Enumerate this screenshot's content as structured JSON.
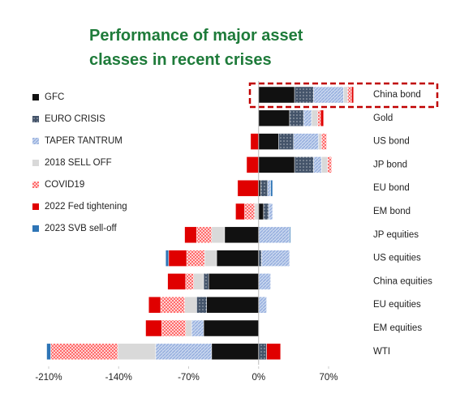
{
  "chart_data": {
    "type": "bar",
    "orientation": "horizontal",
    "stacked": true,
    "title_lines": [
      "Performance of major asset",
      "classes in recent crises"
    ],
    "categories": [
      "China bond",
      "Gold",
      "US bond",
      "JP bond",
      "EU bond",
      "EM bond",
      "JP equities",
      "US equities",
      "China equities",
      "EU equities",
      "EM equities",
      "WTI"
    ],
    "series": [
      {
        "name": "GFC",
        "color": "#111111",
        "values": [
          36,
          31,
          20,
          36,
          2,
          5,
          -34,
          -42,
          -50,
          -52,
          -55,
          -47
        ]
      },
      {
        "name": "EURO CRISIS",
        "color": "#44546a",
        "values": [
          19,
          14,
          15,
          19,
          7,
          5,
          null,
          3,
          -5,
          -10,
          null,
          8
        ]
      },
      {
        "name": "TAPER TANTRUM",
        "color": "#8faadc",
        "values": [
          30,
          8,
          25,
          8,
          3,
          4,
          31,
          28,
          12,
          8,
          -12,
          -56
        ]
      },
      {
        "name": "2018 SELL OFF",
        "color": "#d9d9d9",
        "values": [
          4,
          6,
          3,
          6,
          null,
          -4,
          -13,
          -12,
          -10,
          -12,
          -6,
          -38
        ]
      },
      {
        "name": "COVID19",
        "color": "#ff6b6b",
        "values": [
          4,
          3,
          5,
          4,
          null,
          -10,
          -15,
          -18,
          -8,
          -24,
          -24,
          -67
        ]
      },
      {
        "name": "2022 Fed tightening",
        "color": "#e00000",
        "values": [
          2,
          3,
          -8,
          -12,
          -21,
          -9,
          -12,
          -18,
          -18,
          -12,
          -16,
          14
        ]
      },
      {
        "name": "2023 SVB sell-off",
        "color": "#2e75b6",
        "values": [
          null,
          null,
          null,
          null,
          2,
          null,
          1,
          -3,
          null,
          null,
          null,
          -4
        ]
      }
    ],
    "xlim": [
      -225,
      85
    ],
    "xticks": [
      {
        "value": -210,
        "label": "-210%"
      },
      {
        "value": -140,
        "label": "-140%"
      },
      {
        "value": -70,
        "label": "-70%"
      },
      {
        "value": 0,
        "label": "0%"
      },
      {
        "value": 70,
        "label": "70%"
      }
    ],
    "legend": "upper left"
  }
}
